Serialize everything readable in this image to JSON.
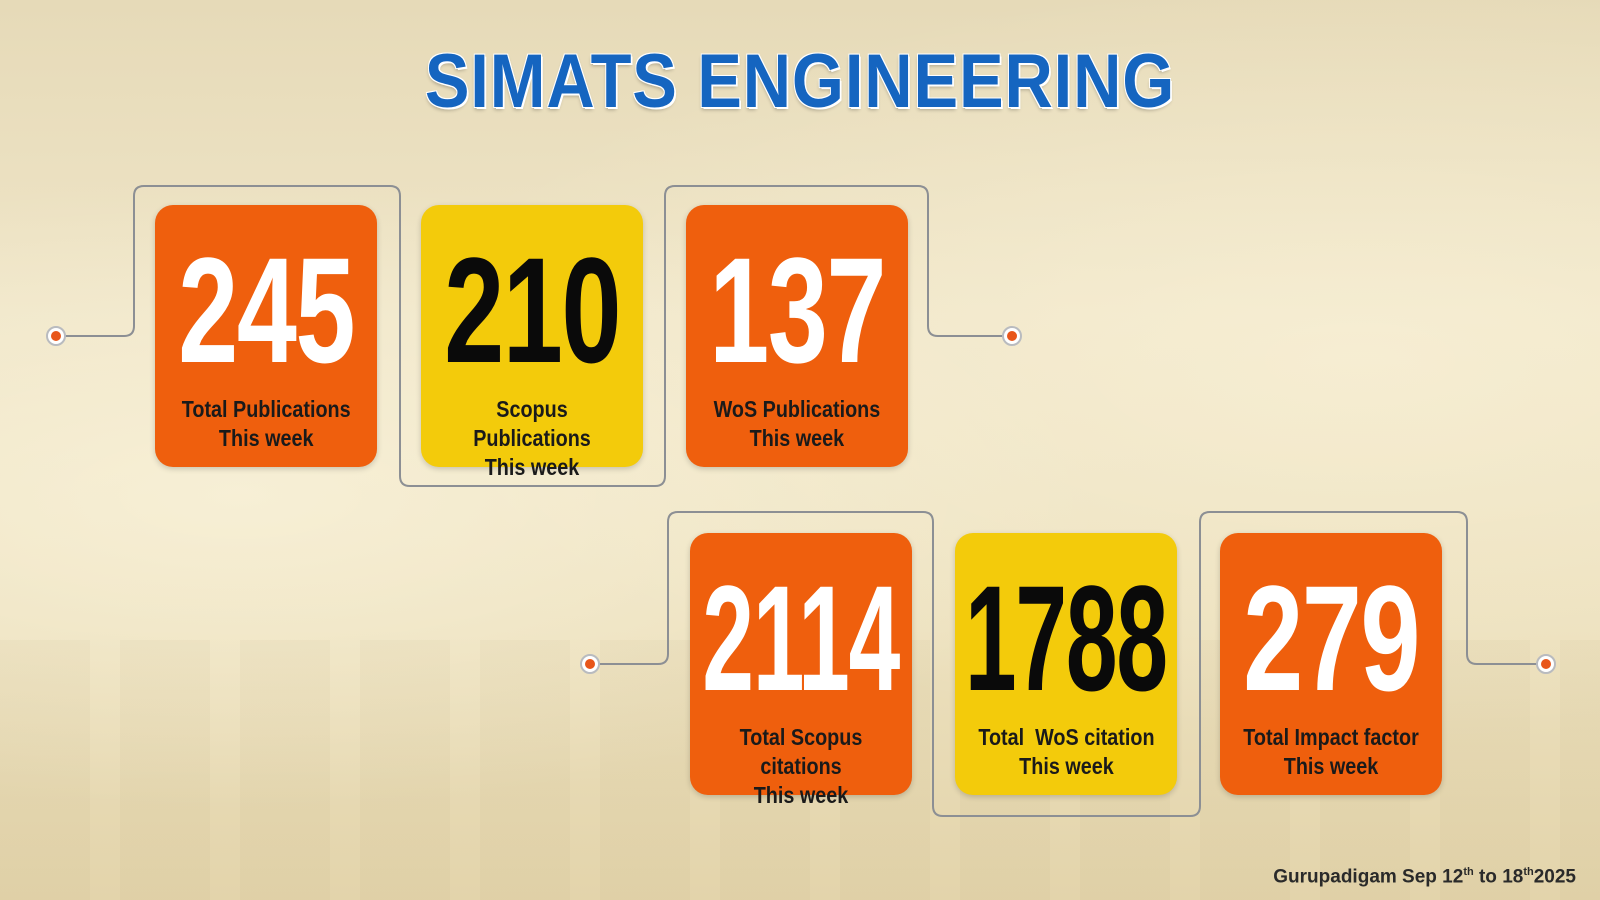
{
  "title": "SIMATS ENGINEERING",
  "stats": [
    {
      "value": "245",
      "label_line1": "Total Publications",
      "label_line2": "This week",
      "color": "#ef5f0d"
    },
    {
      "value": "210",
      "label_line1": "Scopus Publications",
      "label_line2": "This week",
      "color": "#f3cb0b"
    },
    {
      "value": "137",
      "label_line1": "WoS Publications",
      "label_line2": "This week",
      "color": "#ef5f0d"
    },
    {
      "value": "2114",
      "label_line1": "Total Scopus citations",
      "label_line2": "This week",
      "color": "#ef5f0d"
    },
    {
      "value": "1788",
      "label_line1": "Total  WoS citation",
      "label_line2": "This week",
      "color": "#f3cb0b"
    },
    {
      "value": "279",
      "label_line1": "Total Impact factor",
      "label_line2": "This week",
      "color": "#ef5f0d"
    }
  ],
  "footer": {
    "prefix": "Gurupadigam Sep 12",
    "sup1": "th",
    "middle": " to 18",
    "sup2": "th",
    "suffix": "2025"
  },
  "colors": {
    "title": "#1565c0",
    "orange": "#ef5f0d",
    "yellow": "#f3cb0b",
    "accent_dot": "#e8561a"
  }
}
